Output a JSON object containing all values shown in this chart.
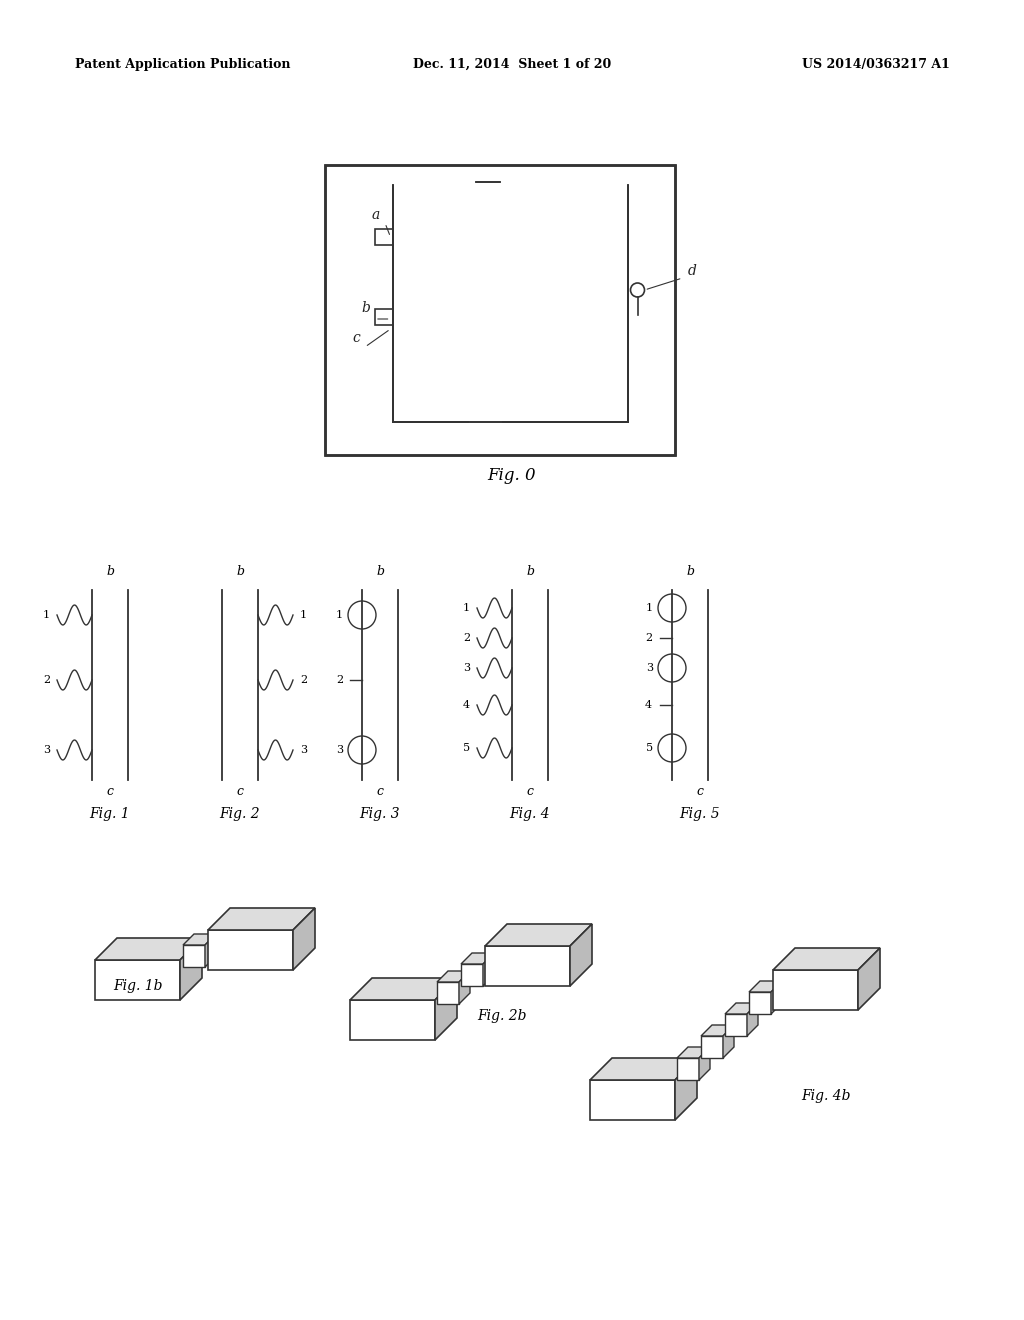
{
  "bg_color": "#ffffff",
  "header_left": "Patent Application Publication",
  "header_mid": "Dec. 11, 2014  Sheet 1 of 20",
  "header_right": "US 2014/0363217 A1",
  "line_color": "#333333",
  "fig0_label": "Fig. 0",
  "fig_row2_labels": [
    "Fig. 1",
    "Fig. 2",
    "Fig. 3",
    "Fig. 4",
    "Fig. 5"
  ],
  "fig_row3_labels": [
    "Fig. 1b",
    "Fig. 2b",
    "Fig. 4b"
  ]
}
